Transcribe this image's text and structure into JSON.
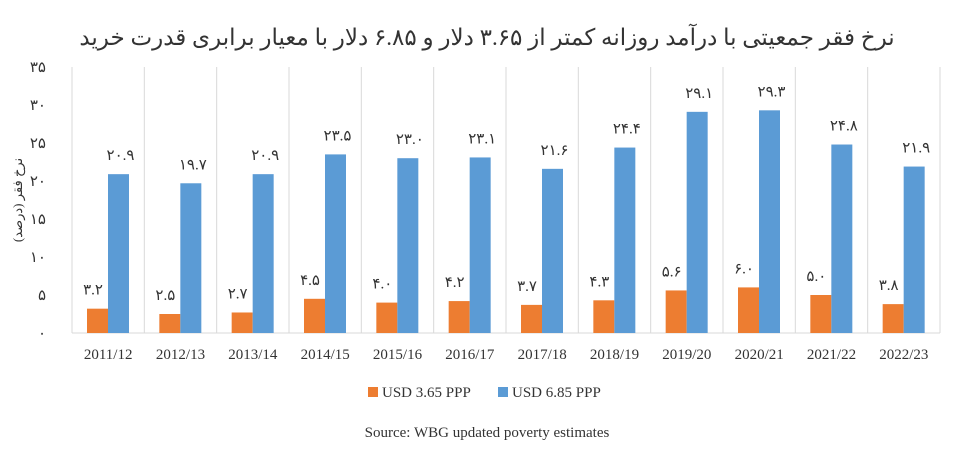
{
  "chart_data": {
    "type": "bar",
    "title": "نرخ فقر جمعیتی با درآمد روزانه کمتر از ۳.۶۵ دلار و ۶.۸۵ دلار با معیار برابری قدرت خرید",
    "xlabel": "",
    "ylabel": "نرخ فقر (درصد)",
    "ylim": [
      0,
      35
    ],
    "yticks": [
      0,
      5,
      10,
      15,
      20,
      25,
      30,
      35
    ],
    "ytick_labels": [
      "۰",
      "۵",
      "۱۰",
      "۱۵",
      "۲۰",
      "۲۵",
      "۳۰",
      "۳۵"
    ],
    "grid": "vertical category separators",
    "legend_position": "bottom",
    "categories": [
      "2011/12",
      "2012/13",
      "2013/14",
      "2014/15",
      "2015/16",
      "2016/17",
      "2017/18",
      "2018/19",
      "2019/20",
      "2020/21",
      "2021/22",
      "2022/23"
    ],
    "series": [
      {
        "name": "USD 3.65 PPP",
        "color": "#ED7D31",
        "values": [
          3.2,
          2.5,
          2.7,
          4.5,
          4.0,
          4.2,
          3.7,
          4.3,
          5.6,
          6.0,
          5.0,
          3.8
        ],
        "labels": [
          "۳.۲",
          "۲.۵",
          "۲.۷",
          "۴.۵",
          "۴.۰",
          "۴.۲",
          "۳.۷",
          "۴.۳",
          "۵.۶",
          "۶.۰",
          "۵.۰",
          "۳.۸"
        ]
      },
      {
        "name": "USD 6.85 PPP",
        "color": "#5B9BD5",
        "values": [
          20.9,
          19.7,
          20.9,
          23.5,
          23.0,
          23.1,
          21.6,
          24.4,
          29.1,
          29.3,
          24.8,
          21.9
        ],
        "labels": [
          "۲۰.۹",
          "۱۹.۷",
          "۲۰.۹",
          "۲۳.۵",
          "۲۳.۰",
          "۲۳.۱",
          "۲۱.۶",
          "۲۴.۴",
          "۲۹.۱",
          "۲۹.۳",
          "۲۴.۸",
          "۲۱.۹"
        ]
      }
    ],
    "source": "Source: WBG updated poverty estimates"
  }
}
